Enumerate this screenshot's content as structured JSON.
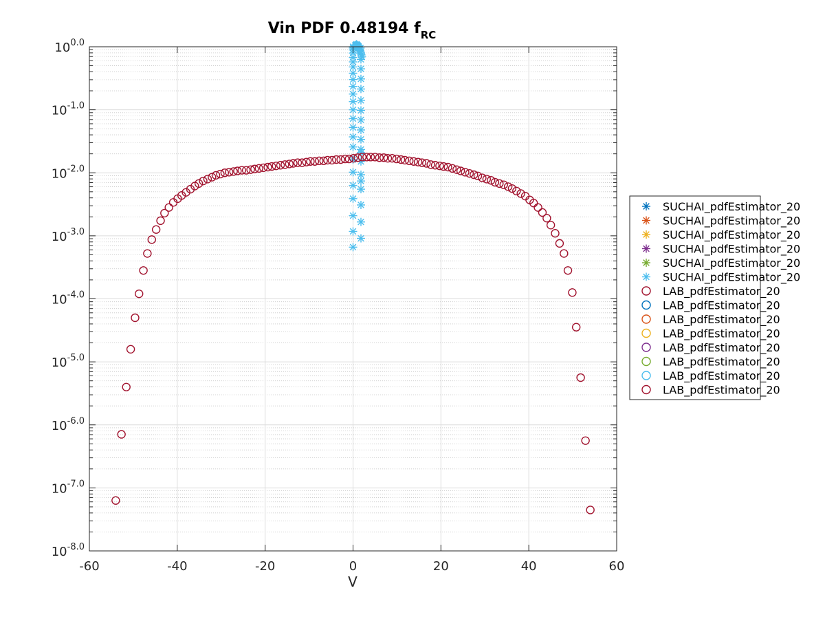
{
  "chart_data": {
    "type": "scatter",
    "title_main": "Vin PDF 0.48194 f",
    "title_sub": "RC",
    "xlabel": "V",
    "ylabel": "",
    "xlim": [
      -60,
      60
    ],
    "ylim_log10": [
      -8,
      0
    ],
    "y_scale": "log",
    "grid": true,
    "legend_position": "right",
    "x_ticks": [
      "-60",
      "-40",
      "-20",
      "0",
      "20",
      "40",
      "60"
    ],
    "y_ticks": [
      {
        "base": "10",
        "exp": "-8.0"
      },
      {
        "base": "10",
        "exp": "-7.0"
      },
      {
        "base": "10",
        "exp": "-6.0"
      },
      {
        "base": "10",
        "exp": "-5.0"
      },
      {
        "base": "10",
        "exp": "-4.0"
      },
      {
        "base": "10",
        "exp": "-3.0"
      },
      {
        "base": "10",
        "exp": "-2.0"
      },
      {
        "base": "10",
        "exp": "-1.0"
      },
      {
        "base": "10",
        "exp": "0.0"
      }
    ],
    "legend": [
      {
        "label": "SUCHAI_pdfEstimator_20",
        "marker": "star",
        "color": "#0072BD"
      },
      {
        "label": "SUCHAI_pdfEstimator_20",
        "marker": "star",
        "color": "#D95319"
      },
      {
        "label": "SUCHAI_pdfEstimator_20",
        "marker": "star",
        "color": "#EDB120"
      },
      {
        "label": "SUCHAI_pdfEstimator_20",
        "marker": "star",
        "color": "#7E2F8E"
      },
      {
        "label": "SUCHAI_pdfEstimator_20",
        "marker": "star",
        "color": "#77AC30"
      },
      {
        "label": "SUCHAI_pdfEstimator_20",
        "marker": "star",
        "color": "#4DBEEE"
      },
      {
        "label": "LAB_pdfEstimator_20",
        "marker": "circle",
        "color": "#A2142F"
      },
      {
        "label": "LAB_pdfEstimator_20",
        "marker": "circle",
        "color": "#0072BD"
      },
      {
        "label": "LAB_pdfEstimator_20",
        "marker": "circle",
        "color": "#D95319"
      },
      {
        "label": "LAB_pdfEstimator_20",
        "marker": "circle",
        "color": "#EDB120"
      },
      {
        "label": "LAB_pdfEstimator_20",
        "marker": "circle",
        "color": "#7E2F8E"
      },
      {
        "label": "LAB_pdfEstimator_20",
        "marker": "circle",
        "color": "#77AC30"
      },
      {
        "label": "LAB_pdfEstimator_20",
        "marker": "circle",
        "color": "#4DBEEE"
      },
      {
        "label": "LAB_pdfEstimator_20",
        "marker": "circle",
        "color": "#A2142F"
      }
    ],
    "series": [
      {
        "marker": "star",
        "color": "#4DBEEE",
        "x": [
          0,
          0,
          0,
          0,
          0,
          0,
          0,
          0,
          0,
          0,
          0,
          0,
          0,
          0,
          0,
          0,
          0,
          0,
          0,
          0,
          0,
          0,
          0,
          0,
          0.5,
          0.6,
          0.7,
          0.8,
          0.9,
          1.0,
          1.1,
          1.2,
          1.3,
          1.4,
          1.5,
          1.6,
          1.7,
          1.8,
          1.9,
          2.0,
          1.7,
          1.8,
          1.8,
          1.8,
          1.8,
          1.8,
          1.8,
          1.8,
          1.8,
          1.8,
          1.8,
          1.8,
          1.8,
          1.8,
          1.8,
          1.8,
          1.8,
          1.8,
          1.8
        ],
        "log10y": [
          -3.18,
          -2.93,
          -2.68,
          -2.41,
          -2.2,
          -1.99,
          -1.79,
          -1.59,
          -1.43,
          -1.28,
          -1.14,
          -1.0,
          -0.87,
          -0.75,
          -0.63,
          -0.52,
          -0.42,
          -0.32,
          -0.24,
          -0.17,
          -0.1,
          -0.05,
          -0.02,
          0.0,
          0.02,
          0.03,
          0.03,
          0.04,
          0.03,
          0.02,
          0.02,
          0.01,
          0.0,
          -0.02,
          -0.04,
          -0.06,
          -0.08,
          -0.1,
          -0.13,
          -0.16,
          -0.02,
          -0.2,
          -0.35,
          -0.51,
          -0.67,
          -0.85,
          -1.01,
          -1.16,
          -1.32,
          -1.47,
          -1.63,
          -1.82,
          -2.03,
          -2.26,
          -2.51,
          -2.78,
          -3.04,
          -2.13,
          -1.68
        ]
      },
      {
        "marker": "circle",
        "color": "#A2142F",
        "x": [
          -54,
          -52.7,
          -51.6,
          -50.6,
          -49.6,
          -48.7,
          -47.7,
          -46.8,
          -45.8,
          -44.8,
          -43.8,
          -42.9,
          -41.9,
          -40.9,
          -39.9,
          -39.0,
          -38.0,
          -37.0,
          -36.0,
          -35.1,
          -34.1,
          -33.1,
          -32.1,
          -31.2,
          -30.2,
          -29.2,
          -28.2,
          -27.2,
          -26.3,
          -25.3,
          -24.3,
          -23.3,
          -22.4,
          -21.4,
          -20.4,
          -19.4,
          -18.5,
          -17.5,
          -16.5,
          -15.5,
          -14.5,
          -13.6,
          -12.6,
          -11.6,
          -10.6,
          -9.7,
          -8.7,
          -7.7,
          -6.7,
          -5.8,
          -4.8,
          -3.8,
          -2.8,
          -1.8,
          -0.9,
          0.1,
          1.1,
          2.1,
          3.1,
          4.0,
          5.0,
          6.0,
          7.0,
          7.9,
          8.9,
          9.9,
          10.9,
          11.8,
          12.8,
          13.8,
          14.8,
          15.7,
          16.7,
          17.7,
          18.7,
          19.7,
          20.6,
          21.6,
          22.6,
          23.6,
          24.5,
          25.5,
          26.5,
          27.5,
          28.4,
          29.4,
          30.4,
          31.4,
          32.3,
          33.3,
          34.3,
          35.3,
          36.2,
          37.2,
          38.2,
          39.2,
          40.2,
          41.1,
          42.1,
          43.1,
          44.1,
          45.0,
          46.0,
          47.0,
          48.0,
          48.9,
          49.9,
          50.8,
          51.8,
          52.9,
          54.0
        ],
        "log10y": [
          -7.2,
          -6.15,
          -5.4,
          -4.8,
          -4.3,
          -3.92,
          -3.55,
          -3.28,
          -3.06,
          -2.9,
          -2.76,
          -2.64,
          -2.55,
          -2.47,
          -2.41,
          -2.36,
          -2.31,
          -2.26,
          -2.21,
          -2.17,
          -2.13,
          -2.1,
          -2.07,
          -2.04,
          -2.02,
          -2.0,
          -1.99,
          -1.98,
          -1.97,
          -1.96,
          -1.96,
          -1.95,
          -1.94,
          -1.93,
          -1.92,
          -1.91,
          -1.9,
          -1.89,
          -1.88,
          -1.87,
          -1.86,
          -1.85,
          -1.84,
          -1.84,
          -1.83,
          -1.82,
          -1.82,
          -1.81,
          -1.81,
          -1.8,
          -1.8,
          -1.79,
          -1.79,
          -1.78,
          -1.78,
          -1.77,
          -1.76,
          -1.75,
          -1.75,
          -1.75,
          -1.75,
          -1.76,
          -1.76,
          -1.77,
          -1.77,
          -1.78,
          -1.79,
          -1.8,
          -1.81,
          -1.82,
          -1.83,
          -1.84,
          -1.85,
          -1.87,
          -1.88,
          -1.89,
          -1.9,
          -1.91,
          -1.93,
          -1.95,
          -1.97,
          -1.99,
          -2.01,
          -2.03,
          -2.05,
          -2.08,
          -2.1,
          -2.12,
          -2.15,
          -2.17,
          -2.19,
          -2.22,
          -2.25,
          -2.29,
          -2.33,
          -2.37,
          -2.43,
          -2.48,
          -2.55,
          -2.63,
          -2.72,
          -2.83,
          -2.96,
          -3.12,
          -3.28,
          -3.55,
          -3.9,
          -4.45,
          -5.25,
          -6.25,
          -7.35
        ]
      }
    ]
  }
}
